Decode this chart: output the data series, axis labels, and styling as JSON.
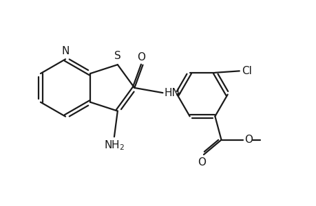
{
  "bg_color": "#ffffff",
  "line_color": "#1a1a1a",
  "line_width": 1.6,
  "font_size": 11,
  "fig_width": 4.6,
  "fig_height": 3.0,
  "dpi": 100,
  "xlim": [
    0,
    9
  ],
  "ylim": [
    0,
    6
  ]
}
